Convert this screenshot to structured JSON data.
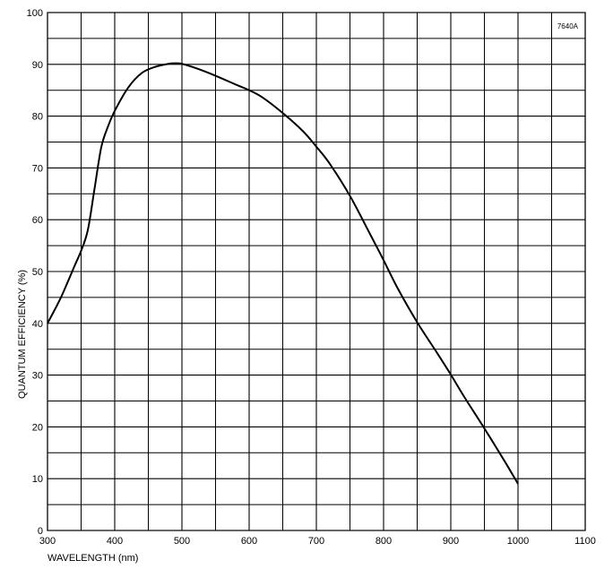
{
  "chart_data": {
    "type": "line",
    "title": "",
    "annotation": "7640A",
    "xlabel": "WAVELENGTH (nm)",
    "ylabel": "QUANTUM EFFICIENCY (%)",
    "xlim": [
      300,
      1100
    ],
    "ylim": [
      0,
      100
    ],
    "x_ticks": [
      300,
      400,
      500,
      600,
      700,
      800,
      900,
      1000,
      1100
    ],
    "y_ticks": [
      0,
      10,
      20,
      30,
      40,
      50,
      60,
      70,
      80,
      90,
      100
    ],
    "grid": true,
    "series": [
      {
        "x": [
          300,
          320,
          340,
          350,
          360,
          370,
          380,
          390,
          400,
          420,
          440,
          460,
          480,
          490,
          500,
          520,
          550,
          580,
          600,
          620,
          650,
          680,
          700,
          720,
          750,
          780,
          800,
          820,
          850,
          880,
          900,
          920,
          950,
          980,
          1000
        ],
        "y": [
          40,
          45,
          51,
          54,
          58,
          66,
          74,
          78,
          81,
          85.5,
          88.3,
          89.5,
          90.1,
          90.2,
          90.1,
          89.3,
          87.8,
          86.1,
          85,
          83.6,
          80.6,
          77.1,
          74.1,
          70.8,
          64.6,
          57.2,
          52.2,
          47,
          40.2,
          34.2,
          30.1,
          25.8,
          19.7,
          13.4,
          9
        ]
      }
    ]
  }
}
